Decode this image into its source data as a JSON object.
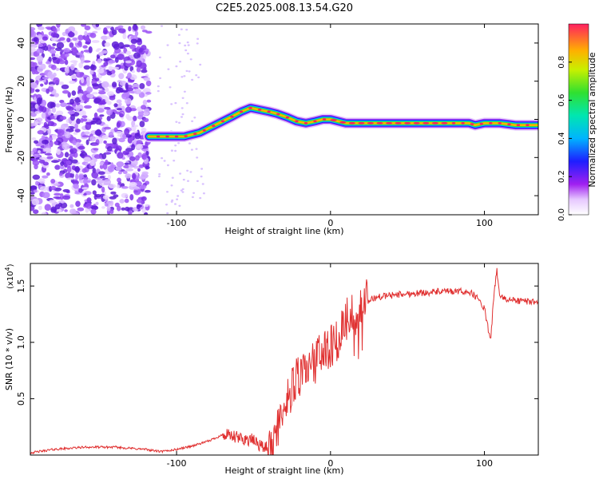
{
  "title": "C2E5.2025.008.13.54.G20",
  "colors": {
    "signal": "#e03030",
    "noise": "#6a1fd8",
    "axis": "#000000"
  },
  "chart_data": [
    {
      "type": "heatmap",
      "xlabel": "Height of straight line (km)",
      "ylabel": "Frequency (Hz)",
      "xlim": [
        -195,
        135
      ],
      "ylim": [
        -50,
        50
      ],
      "xticks": [
        -100,
        0,
        100
      ],
      "xtick_labels": [
        "-100",
        "0",
        "100"
      ],
      "yticks": [
        -40,
        -20,
        0,
        20,
        40
      ],
      "ytick_labels": [
        "-40",
        "-20",
        "0",
        "20",
        "40"
      ],
      "ridge": {
        "x": [
          -118,
          -105,
          -95,
          -85,
          -75,
          -65,
          -58,
          -52,
          -46,
          -40,
          -35,
          -28,
          -22,
          -16,
          -10,
          -5,
          0,
          5,
          10,
          30,
          60,
          90,
          94,
          100,
          110,
          120,
          135
        ],
        "y": [
          -9,
          -9,
          -9,
          -7,
          -3,
          1,
          4,
          6,
          5,
          4,
          3,
          1,
          -1,
          -2,
          -1,
          0,
          0,
          -1,
          -2,
          -2,
          -2,
          -2,
          -3,
          -2,
          -2,
          -3,
          -3
        ]
      },
      "noise_region_x": [
        -195,
        -118
      ],
      "colorbar": {
        "label": "Normalized spectral amplitude",
        "range": [
          0.0,
          1.0
        ],
        "ticks": [
          0.0,
          0.2,
          0.4,
          0.6,
          0.8
        ],
        "tick_labels": [
          "0.0",
          "0.2",
          "0.4",
          "0.6",
          "0.8"
        ]
      }
    },
    {
      "type": "line",
      "xlabel": "Height of straight line (km)",
      "ylabel": "SNR (10 * v/v)",
      "scale_label_prefix": "(x10",
      "scale_label_exp": "4",
      "scale_label_suffix": ")",
      "xlim": [
        -195,
        135
      ],
      "ylim": [
        0.0,
        1.7
      ],
      "xticks": [
        -100,
        0,
        100
      ],
      "xtick_labels": [
        "-100",
        "0",
        "100"
      ],
      "yticks": [
        0.5,
        1.0,
        1.5
      ],
      "ytick_labels": [
        "0.5",
        "1.0",
        "1.5"
      ],
      "series": [
        {
          "x": [
            -195,
            -180,
            -160,
            -140,
            -120,
            -110,
            -100,
            -90,
            -80,
            -70,
            -60,
            -50,
            -45,
            -40,
            -35,
            -30,
            -25,
            -20,
            -15,
            -10,
            -5,
            0,
            5,
            10,
            15,
            20,
            30,
            40,
            50,
            60,
            70,
            80,
            90,
            95,
            100,
            104,
            106,
            108,
            110,
            115,
            120,
            130,
            135
          ],
          "y": [
            0.02,
            0.05,
            0.07,
            0.07,
            0.05,
            0.03,
            0.05,
            0.08,
            0.12,
            0.18,
            0.15,
            0.13,
            0.08,
            0.05,
            0.2,
            0.45,
            0.6,
            0.7,
            0.8,
            0.85,
            0.9,
            0.95,
            1.05,
            1.2,
            1.3,
            1.35,
            1.4,
            1.42,
            1.43,
            1.44,
            1.45,
            1.45,
            1.45,
            1.4,
            1.3,
            1.0,
            1.4,
            1.65,
            1.4,
            1.38,
            1.37,
            1.36,
            1.37
          ]
        }
      ]
    }
  ]
}
